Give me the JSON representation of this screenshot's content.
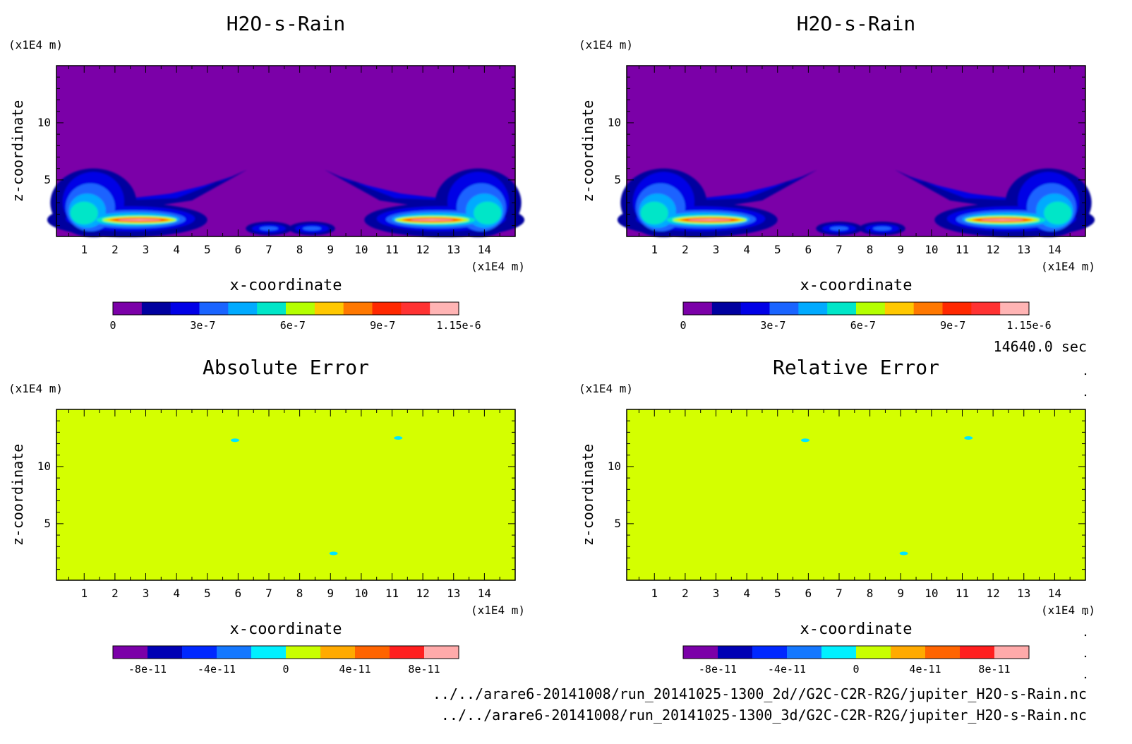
{
  "time_label": "14640.0 sec",
  "file_paths": [
    "../../arare6-20141008/run_20141025-1300_2d//G2C-C2R-R2G/jupiter_H2O-s-Rain.nc",
    "../../arare6-20141008/run_20141025-1300_3d/G2C-C2R-R2G/jupiter_H2O-s-Rain.nc"
  ],
  "colors": {
    "rain_levels": [
      "#7b00a8",
      "#00009f",
      "#0000e6",
      "#1a64ff",
      "#00aaff",
      "#00e6c8",
      "#b4ff00",
      "#ffc800",
      "#ff7800",
      "#ff2800",
      "#ff3232",
      "#ffb4b4"
    ],
    "error_levels": [
      "#7b00a8",
      "#0000b4",
      "#0028ff",
      "#1478ff",
      "#00f0ff",
      "#c8ff00",
      "#ffaa00",
      "#ff6400",
      "#ff1e1e",
      "#ffaaaa"
    ],
    "error_fill": "#d4ff00",
    "error_spot": "#00e6ff"
  },
  "chart_data": [
    {
      "type": "heatmap",
      "id": "panel-tl",
      "title": "H2O-s-Rain",
      "xlabel": "x-coordinate",
      "ylabel": "z-coordinate",
      "x_unit": "(x1E4 m)",
      "y_unit": "(x1E4 m)",
      "xlim": [
        0.1,
        15
      ],
      "ylim": [
        0.05,
        15
      ],
      "x_ticks": [
        1,
        2,
        3,
        4,
        5,
        6,
        7,
        8,
        9,
        10,
        11,
        12,
        13,
        14
      ],
      "y_ticks": [
        5,
        10
      ],
      "colorbar_ticks": [
        "0",
        "3e-7",
        "6e-7",
        "9e-7",
        "1.15e-6"
      ],
      "field": "rain"
    },
    {
      "type": "heatmap",
      "id": "panel-tr",
      "title": "H2O-s-Rain",
      "xlabel": "x-coordinate",
      "ylabel": "z-coordinate",
      "x_unit": "(x1E4 m)",
      "y_unit": "(x1E4 m)",
      "xlim": [
        0.1,
        15
      ],
      "ylim": [
        0.05,
        15
      ],
      "x_ticks": [
        1,
        2,
        3,
        4,
        5,
        6,
        7,
        8,
        9,
        10,
        11,
        12,
        13,
        14
      ],
      "y_ticks": [
        5,
        10
      ],
      "colorbar_ticks": [
        "0",
        "3e-7",
        "6e-7",
        "9e-7",
        "1.15e-6"
      ],
      "field": "rain"
    },
    {
      "type": "heatmap",
      "id": "panel-bl",
      "title": "Absolute Error",
      "xlabel": "x-coordinate",
      "ylabel": "z-coordinate",
      "x_unit": "(x1E4 m)",
      "y_unit": "(x1E4 m)",
      "xlim": [
        0.1,
        15
      ],
      "ylim": [
        0.05,
        15
      ],
      "x_ticks": [
        1,
        2,
        3,
        4,
        5,
        6,
        7,
        8,
        9,
        10,
        11,
        12,
        13,
        14
      ],
      "y_ticks": [
        5,
        10
      ],
      "colorbar_ticks": [
        "-8e-11",
        "-4e-11",
        "0",
        "4e-11",
        "8e-11"
      ],
      "field": "error"
    },
    {
      "type": "heatmap",
      "id": "panel-br",
      "title": "Relative Error",
      "xlabel": "x-coordinate",
      "ylabel": "z-coordinate",
      "x_unit": "(x1E4 m)",
      "y_unit": "(x1E4 m)",
      "xlim": [
        0.1,
        15
      ],
      "ylim": [
        0.05,
        15
      ],
      "x_ticks": [
        1,
        2,
        3,
        4,
        5,
        6,
        7,
        8,
        9,
        10,
        11,
        12,
        13,
        14
      ],
      "y_ticks": [
        5,
        10
      ],
      "colorbar_ticks": [
        "-8e-11",
        "-4e-11",
        "0",
        "4e-11",
        "8e-11"
      ],
      "field": "error"
    }
  ]
}
